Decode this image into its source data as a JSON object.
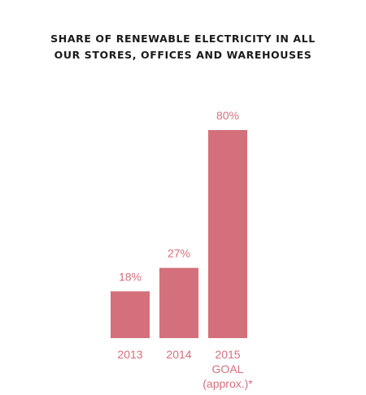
{
  "colors": {
    "bar": "#d4707b",
    "label": "#d4707b",
    "title": "#1a1a1a",
    "background": "#ffffff"
  },
  "chart_data": {
    "type": "bar",
    "title_lines": [
      "SHARE OF RENEWABLE ELECTRICITY IN ALL",
      "OUR STORES, OFFICES AND WAREHOUSES"
    ],
    "categories": [
      [
        "2013"
      ],
      [
        "2014"
      ],
      [
        "2015",
        "GOAL",
        "(approx.)*"
      ]
    ],
    "values": [
      18,
      27,
      80
    ],
    "value_labels": [
      "18%",
      "27%",
      "80%"
    ],
    "ylim": [
      0,
      80
    ],
    "grid": false,
    "legend": "none"
  }
}
